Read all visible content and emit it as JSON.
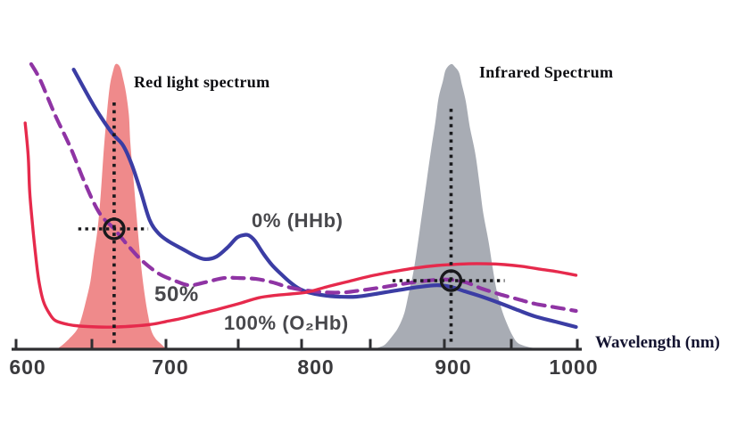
{
  "titles": {
    "red_spectrum": "Red light spectrum",
    "infrared_spectrum": "Infrared Spectrum"
  },
  "curve_labels": {
    "hhb": "0% (HHb)",
    "fifty": "50%",
    "o2hb": "100% (O₂Hb)"
  },
  "axis": {
    "label": "Wavelength (nm)"
  },
  "colors": {
    "hhb_blue": "#3b3da4",
    "fifty_purple": "#8f34a4",
    "o2hb_red": "#e62a4c",
    "red_spectrum_fill": "#ef8a8b",
    "infrared_spectrum_fill": "#a8acb4",
    "axis": "#2e2e31",
    "crosshair": "#19191c"
  },
  "chart_data": {
    "type": "line",
    "title": "",
    "xlabel": "Wavelength (nm)",
    "ylabel": "",
    "xlim": [
      600,
      1000
    ],
    "ylim_relative": [
      0,
      1
    ],
    "grid": false,
    "x_major_ticks": [
      600,
      700,
      800,
      900,
      1000
    ],
    "x_minor_ticks": [
      650,
      750,
      850,
      950
    ],
    "series": [
      {
        "name": "0% (HHb)",
        "style": "solid",
        "color": "#3b3da4",
        "points": [
          [
            638,
            0.981
          ],
          [
            651,
            0.857
          ],
          [
            663,
            0.763
          ],
          [
            671,
            0.716
          ],
          [
            677,
            0.648
          ],
          [
            683,
            0.554
          ],
          [
            689,
            0.455
          ],
          [
            695,
            0.408
          ],
          [
            702,
            0.38
          ],
          [
            712,
            0.352
          ],
          [
            720,
            0.33
          ],
          [
            727,
            0.318
          ],
          [
            735,
            0.327
          ],
          [
            743,
            0.361
          ],
          [
            749,
            0.393
          ],
          [
            754,
            0.402
          ],
          [
            758,
            0.402
          ],
          [
            763,
            0.383
          ],
          [
            770,
            0.336
          ],
          [
            777,
            0.296
          ],
          [
            784,
            0.265
          ],
          [
            791,
            0.237
          ],
          [
            798,
            0.215
          ],
          [
            805,
            0.202
          ],
          [
            814,
            0.193
          ],
          [
            827,
            0.187
          ],
          [
            840,
            0.187
          ],
          [
            853,
            0.196
          ],
          [
            868,
            0.209
          ],
          [
            883,
            0.221
          ],
          [
            895,
            0.227
          ],
          [
            905,
            0.221
          ],
          [
            915,
            0.206
          ],
          [
            928,
            0.187
          ],
          [
            941,
            0.165
          ],
          [
            955,
            0.14
          ],
          [
            968,
            0.118
          ],
          [
            983,
            0.1
          ],
          [
            999,
            0.081
          ]
        ]
      },
      {
        "name": "50%",
        "style": "dashed",
        "color": "#8f34a4",
        "points": [
          [
            610,
            1.0
          ],
          [
            616,
            0.944
          ],
          [
            626,
            0.819
          ],
          [
            636,
            0.707
          ],
          [
            645,
            0.589
          ],
          [
            655,
            0.48
          ],
          [
            665,
            0.424
          ],
          [
            674,
            0.368
          ],
          [
            684,
            0.312
          ],
          [
            695,
            0.268
          ],
          [
            706,
            0.243
          ],
          [
            716,
            0.227
          ],
          [
            727,
            0.237
          ],
          [
            740,
            0.252
          ],
          [
            751,
            0.252
          ],
          [
            764,
            0.249
          ],
          [
            777,
            0.237
          ],
          [
            789,
            0.221
          ],
          [
            803,
            0.209
          ],
          [
            818,
            0.202
          ],
          [
            831,
            0.202
          ],
          [
            843,
            0.209
          ],
          [
            856,
            0.218
          ],
          [
            870,
            0.23
          ],
          [
            883,
            0.24
          ],
          [
            895,
            0.246
          ],
          [
            905,
            0.246
          ],
          [
            916,
            0.237
          ],
          [
            928,
            0.215
          ],
          [
            941,
            0.196
          ],
          [
            955,
            0.178
          ],
          [
            968,
            0.162
          ],
          [
            983,
            0.15
          ],
          [
            999,
            0.137
          ]
        ]
      },
      {
        "name": "100% (O₂Hb)",
        "style": "solid",
        "color": "#e62a4c",
        "points": [
          [
            606,
            0.794
          ],
          [
            608,
            0.679
          ],
          [
            609,
            0.554
          ],
          [
            611,
            0.43
          ],
          [
            613,
            0.327
          ],
          [
            615,
            0.243
          ],
          [
            618,
            0.171
          ],
          [
            622,
            0.128
          ],
          [
            626,
            0.103
          ],
          [
            634,
            0.09
          ],
          [
            642,
            0.084
          ],
          [
            654,
            0.081
          ],
          [
            666,
            0.081
          ],
          [
            678,
            0.084
          ],
          [
            690,
            0.09
          ],
          [
            700,
            0.1
          ],
          [
            712,
            0.112
          ],
          [
            724,
            0.128
          ],
          [
            736,
            0.143
          ],
          [
            750,
            0.162
          ],
          [
            766,
            0.183
          ],
          [
            780,
            0.192
          ],
          [
            803,
            0.202
          ],
          [
            818,
            0.221
          ],
          [
            834,
            0.24
          ],
          [
            850,
            0.259
          ],
          [
            865,
            0.274
          ],
          [
            880,
            0.287
          ],
          [
            895,
            0.296
          ],
          [
            905,
            0.299
          ],
          [
            918,
            0.302
          ],
          [
            931,
            0.302
          ],
          [
            945,
            0.299
          ],
          [
            958,
            0.293
          ],
          [
            972,
            0.283
          ],
          [
            985,
            0.274
          ],
          [
            999,
            0.262
          ]
        ]
      }
    ],
    "areas": [
      {
        "name": "Red light spectrum",
        "color": "#ef8a8b",
        "peak_nm": 665,
        "points": [
          [
            626,
            0
          ],
          [
            631,
            0.02
          ],
          [
            635,
            0.04
          ],
          [
            640,
            0.07
          ],
          [
            643,
            0.11
          ],
          [
            646,
            0.17
          ],
          [
            649,
            0.24
          ],
          [
            651,
            0.32
          ],
          [
            654,
            0.43
          ],
          [
            656,
            0.55
          ],
          [
            658,
            0.7
          ],
          [
            660,
            0.82
          ],
          [
            662,
            0.92
          ],
          [
            664,
            0.97
          ],
          [
            666,
            1.0
          ],
          [
            669,
            0.99
          ],
          [
            671,
            0.95
          ],
          [
            673,
            0.9
          ],
          [
            675,
            0.82
          ],
          [
            676,
            0.72
          ],
          [
            678,
            0.6
          ],
          [
            680,
            0.48
          ],
          [
            682,
            0.36
          ],
          [
            684,
            0.26
          ],
          [
            686,
            0.18
          ],
          [
            688,
            0.12
          ],
          [
            690,
            0.07
          ],
          [
            693,
            0.04
          ],
          [
            697,
            0.02
          ],
          [
            701,
            0
          ]
        ]
      },
      {
        "name": "Infrared Spectrum",
        "color": "#a8acb4",
        "peak_nm": 905,
        "points": [
          [
            851,
            0
          ],
          [
            856,
            0.01
          ],
          [
            860,
            0.02
          ],
          [
            865,
            0.05
          ],
          [
            869,
            0.08
          ],
          [
            873,
            0.13
          ],
          [
            876,
            0.2
          ],
          [
            879,
            0.27
          ],
          [
            882,
            0.37
          ],
          [
            885,
            0.48
          ],
          [
            888,
            0.59
          ],
          [
            891,
            0.7
          ],
          [
            894,
            0.8
          ],
          [
            896,
            0.88
          ],
          [
            899,
            0.94
          ],
          [
            901,
            0.98
          ],
          [
            905,
            1.0
          ],
          [
            908,
            0.99
          ],
          [
            911,
            0.97
          ],
          [
            913,
            0.93
          ],
          [
            916,
            0.87
          ],
          [
            919,
            0.78
          ],
          [
            923,
            0.69
          ],
          [
            926,
            0.59
          ],
          [
            929,
            0.48
          ],
          [
            933,
            0.38
          ],
          [
            936,
            0.29
          ],
          [
            939,
            0.21
          ],
          [
            943,
            0.14
          ],
          [
            947,
            0.09
          ],
          [
            951,
            0.05
          ],
          [
            955,
            0.025
          ],
          [
            962,
            0.012
          ],
          [
            970,
            0.006
          ],
          [
            980,
            0.003
          ],
          [
            992,
            0
          ]
        ]
      }
    ],
    "markers": [
      {
        "name": "red-light-operating-point",
        "nm": 665,
        "y_rel": 0.424,
        "v_extent_rel": [
          0.009,
          0.866
        ],
        "h_extent_nm": [
          641,
          688
        ]
      },
      {
        "name": "infrared-operating-point",
        "nm": 905,
        "y_rel": 0.243,
        "v_extent_rel": [
          0.016,
          0.844
        ],
        "h_extent_nm": [
          865,
          945
        ]
      }
    ]
  }
}
